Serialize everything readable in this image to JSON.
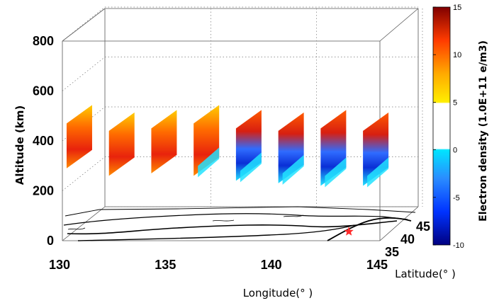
{
  "chart_data": {
    "type": "3d-scatter-slices",
    "title": "",
    "xlabel": "Longitude(°  )",
    "ylabel": "Altitude (km)",
    "zlabel": "Latitude(°  )",
    "xlim": [
      130,
      145
    ],
    "ylim": [
      0,
      800
    ],
    "zlim": [
      35,
      45
    ],
    "x_ticks": [
      130,
      135,
      140,
      145
    ],
    "y_ticks": [
      0,
      200,
      400,
      600,
      800
    ],
    "z_ticks": [
      35,
      40,
      45
    ],
    "colorbar": {
      "label": "Electron density (1.0E+11 e/m3)",
      "range": [
        -10,
        15
      ],
      "ticks": [
        -10,
        -5,
        0,
        5,
        10,
        15
      ]
    },
    "slices": [
      {
        "lon": 130.2,
        "alt": [
          290,
          470
        ],
        "value": 9
      },
      {
        "lon": 132.2,
        "alt": [
          260,
          440
        ],
        "value": 11
      },
      {
        "lon": 134.2,
        "alt": [
          270,
          450
        ],
        "value": 12
      },
      {
        "lon": 136.2,
        "alt": [
          260,
          470
        ],
        "value": 10,
        "low": -1
      },
      {
        "lon": 138.2,
        "alt": [
          240,
          450
        ],
        "value": 10,
        "low": -3
      },
      {
        "lon": 140.2,
        "alt": [
          230,
          440
        ],
        "value": 11,
        "low": -7
      },
      {
        "lon": 142.2,
        "alt": [
          220,
          450
        ],
        "value": 10,
        "low": -8
      },
      {
        "lon": 144.2,
        "alt": [
          220,
          440
        ],
        "value": 9,
        "low": -4
      }
    ],
    "marker": {
      "type": "star",
      "color": "#ff2a2a",
      "lon": 143.2,
      "lat": 38.3,
      "alt": 0
    }
  }
}
